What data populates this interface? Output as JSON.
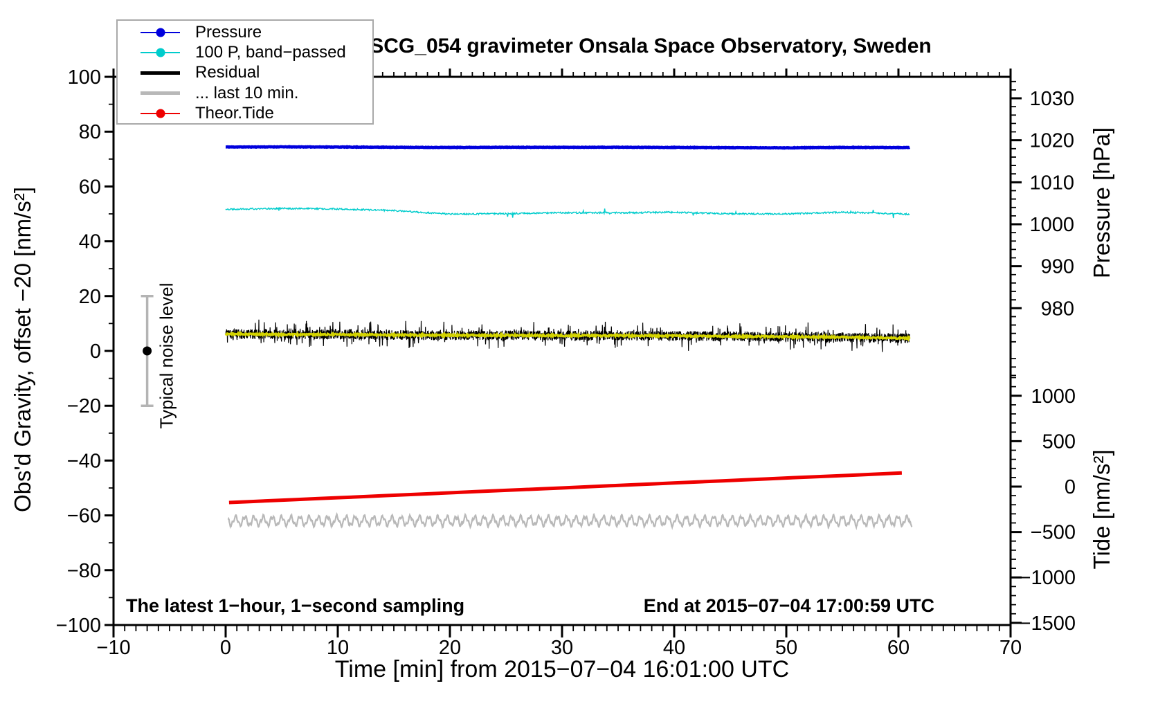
{
  "chart_data": {
    "type": "line",
    "title": "SCG_054 gravimeter Onsala Space Observatory, Sweden",
    "xlabel": "Time [min] from 2015−07−04 16:01:00 UTC",
    "ylabel_left": "Obs'd Gravity, offset −20 [nm/s²]",
    "ylabel_right_top": "Pressure [hPa]",
    "ylabel_right_bottom": "Tide [nm/s²]",
    "annotation_left": "The latest 1−hour, 1−second sampling",
    "annotation_right": "End at 2015−07−04 17:00:59 UTC",
    "grid": false,
    "legend_position": "top-left",
    "x_axis": {
      "label": "Time [min]",
      "range": [
        -10,
        70
      ],
      "major_ticks": [
        -10,
        0,
        10,
        20,
        30,
        40,
        50,
        60,
        70
      ],
      "minor_step": 1
    },
    "y_axis_left": {
      "label": "Obs'd Gravity, offset −20 [nm/s²]",
      "range": [
        -100,
        100
      ],
      "major_ticks": [
        100,
        80,
        60,
        40,
        20,
        0,
        -20,
        -40,
        -60,
        -80,
        -100
      ],
      "minor_step": 10
    },
    "y_axis_right_pressure": {
      "label": "Pressure [hPa]",
      "major_ticks": [
        1030,
        1020,
        1010,
        1000,
        990,
        980
      ],
      "minor_step": 2
    },
    "y_axis_right_tide": {
      "label": "Tide [nm/s²]",
      "major_ticks": [
        1000,
        500,
        0,
        -500,
        -1000,
        -1500
      ],
      "minor_step": 100
    },
    "noise_marker": {
      "label": "Typical noise level",
      "x": -7,
      "y": 0,
      "yerr": 20,
      "bar_color": "#b4b4b4",
      "dot_color": "#000000"
    },
    "series": [
      {
        "name": "Pressure",
        "color": "#0000dd",
        "width": 4.5,
        "step": 0.05,
        "seed": 11,
        "noise": 0.08,
        "in_legend": true,
        "axis_note": "approx 1018 hPa on right pressure axis, ~74 on left axis",
        "x": [
          0,
          5,
          10,
          15,
          20,
          25,
          30,
          35,
          40,
          45,
          50,
          55,
          60,
          61
        ],
        "y": [
          74.4,
          74.45,
          74.4,
          74.3,
          74.25,
          74.3,
          74.3,
          74.3,
          74.25,
          74.15,
          74.1,
          74.25,
          74.2,
          74.2
        ]
      },
      {
        "name": "100 P, band−passed",
        "color": "#00cccc",
        "width": 1.4,
        "step": 0.05,
        "seed": 22,
        "noise": 0.28,
        "spike": 1.4,
        "spike_p": 0.012,
        "in_legend": true,
        "axis_note": "~50-52 on left axis",
        "x": [
          0,
          5,
          10,
          15,
          20,
          25,
          30,
          35,
          40,
          45,
          50,
          55,
          60,
          61
        ],
        "y": [
          51.7,
          52.0,
          51.8,
          51.2,
          49.9,
          50.1,
          50.4,
          50.4,
          50.6,
          50.0,
          50.0,
          50.6,
          50.0,
          49.9
        ]
      },
      {
        "name": "Residual",
        "color": "#000000",
        "width": 1.2,
        "step": 0.02,
        "seed": 33,
        "noise": 1.8,
        "spike": 4.0,
        "spike_p": 0.12,
        "in_legend": true,
        "axis_note": "noisy band ~+6 declining to ~+4.5 on left axis",
        "x": [
          0,
          5,
          10,
          15,
          20,
          25,
          30,
          35,
          40,
          45,
          50,
          55,
          60,
          61
        ],
        "y": [
          6.2,
          6.0,
          6.0,
          5.8,
          5.7,
          5.7,
          5.6,
          5.6,
          5.5,
          5.3,
          5.2,
          5.0,
          4.7,
          4.6
        ]
      },
      {
        "name": "Residual smoothed",
        "color": "#d4d400",
        "width": 3.2,
        "step": 0.05,
        "seed": 44,
        "noise": 0.3,
        "in_legend": false,
        "axis_note": "yellow smoothed line over residual",
        "x": [
          0,
          5,
          10,
          15,
          20,
          25,
          30,
          35,
          40,
          45,
          50,
          55,
          60,
          61
        ],
        "y": [
          6.2,
          6.0,
          6.0,
          5.8,
          5.7,
          5.7,
          5.6,
          5.6,
          5.5,
          5.3,
          5.2,
          5.0,
          4.7,
          4.6
        ]
      },
      {
        "name": "Theor.Tide",
        "color": "#ee0000",
        "width": 5,
        "step": 2,
        "seed": 55,
        "noise": 0,
        "in_legend": true,
        "axis_note": "linear rise, approx −170 to +155 nm/s² on right tide axis",
        "x": [
          0.3,
          61
        ],
        "y": [
          -55.3,
          -44.4
        ]
      },
      {
        "name": "... last 10 min.",
        "color": "#b8b8b8",
        "width": 2.2,
        "step": 0.02,
        "seed": 66,
        "noise": 0.18,
        "in_legend": true,
        "axis_note": "oscillating around −62 on left axis",
        "osc": [
          [
            1.55,
            0.82,
            1.0
          ],
          [
            0.6,
            0.31,
            2.1
          ]
        ],
        "x": [
          0.2,
          61.2
        ],
        "y": [
          -62.0,
          -62.0
        ]
      }
    ]
  },
  "legend": {
    "items": [
      {
        "label": "Pressure",
        "color": "#0000dd",
        "line_width": 2,
        "marker": true
      },
      {
        "label": "100 P, band−passed",
        "color": "#00cccc",
        "line_width": 2,
        "marker": true
      },
      {
        "label": "Residual",
        "color": "#000000",
        "line_width": 5,
        "marker": false
      },
      {
        "label": "... last 10 min.",
        "color": "#b8b8b8",
        "line_width": 5,
        "marker": false
      },
      {
        "label": "Theor.Tide",
        "color": "#ee0000",
        "line_width": 2,
        "marker": true
      }
    ]
  }
}
